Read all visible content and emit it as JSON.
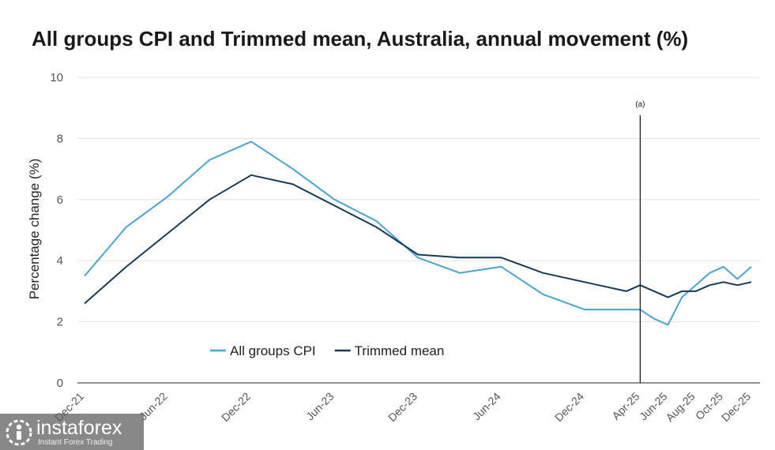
{
  "chart_data": {
    "type": "line",
    "title": "All groups CPI and Trimmed mean, Australia, annual movement (%)",
    "ylabel": "Percentage change (%)",
    "xlabel": "",
    "ylim": [
      0,
      10
    ],
    "yticks": [
      0,
      2,
      4,
      6,
      8,
      10
    ],
    "grid": true,
    "legend_position": "bottom-left",
    "annotation": {
      "label": "(a)",
      "at": "Apr-25"
    },
    "xticks": [
      "Dec-21",
      "Jun-22",
      "Dec-22",
      "Jun-23",
      "Dec-23",
      "Jun-24",
      "Dec-24",
      "Apr-25",
      "Jun-25",
      "Aug-25",
      "Oct-25",
      "Dec-25"
    ],
    "series": [
      {
        "name": "All groups CPI",
        "color": "#4ba3cf",
        "points": [
          [
            "Dec-21",
            3.5
          ],
          [
            "Mar-22",
            5.1
          ],
          [
            "Jun-22",
            6.1
          ],
          [
            "Sep-22",
            7.3
          ],
          [
            "Dec-22",
            7.9
          ],
          [
            "Mar-23",
            7.0
          ],
          [
            "Jun-23",
            6.0
          ],
          [
            "Sep-23",
            5.3
          ],
          [
            "Dec-23",
            4.1
          ],
          [
            "Mar-24",
            3.6
          ],
          [
            "Jun-24",
            3.8
          ],
          [
            "Sep-24",
            2.9
          ],
          [
            "Dec-24",
            2.4
          ],
          [
            "Mar-25",
            2.4
          ],
          [
            "Apr-25",
            2.4
          ],
          [
            "May-25",
            2.1
          ],
          [
            "Jun-25",
            1.9
          ],
          [
            "Jul-25",
            2.8
          ],
          [
            "Aug-25",
            3.2
          ],
          [
            "Sep-25",
            3.6
          ],
          [
            "Oct-25",
            3.8
          ],
          [
            "Nov-25",
            3.4
          ],
          [
            "Dec-25",
            3.8
          ]
        ]
      },
      {
        "name": "Trimmed mean",
        "color": "#163a56",
        "points": [
          [
            "Dec-21",
            2.6
          ],
          [
            "Mar-22",
            3.8
          ],
          [
            "Jun-22",
            4.9
          ],
          [
            "Sep-22",
            6.0
          ],
          [
            "Dec-22",
            6.8
          ],
          [
            "Mar-23",
            6.5
          ],
          [
            "Jun-23",
            5.8
          ],
          [
            "Sep-23",
            5.1
          ],
          [
            "Dec-23",
            4.2
          ],
          [
            "Mar-24",
            4.1
          ],
          [
            "Jun-24",
            4.1
          ],
          [
            "Sep-24",
            3.6
          ],
          [
            "Dec-24",
            3.3
          ],
          [
            "Mar-25",
            3.0
          ],
          [
            "Apr-25",
            3.2
          ],
          [
            "Jun-25",
            2.8
          ],
          [
            "Jul-25",
            3.0
          ],
          [
            "Aug-25",
            3.0
          ],
          [
            "Sep-25",
            3.2
          ],
          [
            "Oct-25",
            3.3
          ],
          [
            "Nov-25",
            3.2
          ],
          [
            "Dec-25",
            3.3
          ]
        ]
      }
    ]
  },
  "watermark": {
    "brand": "instaforex",
    "tagline": "Instant Forex Trading",
    "logo_icon": "instaforex-logo-icon"
  }
}
